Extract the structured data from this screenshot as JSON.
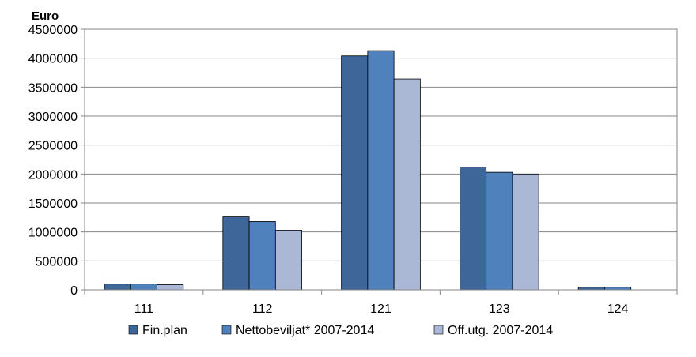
{
  "chart_data": {
    "type": "bar",
    "ylabel": "Euro",
    "categories": [
      "111",
      "112",
      "121",
      "123",
      "124"
    ],
    "series": [
      {
        "name": "Fin.plan",
        "color": "#3E6699",
        "values": [
          100000,
          1260000,
          4040000,
          2120000,
          45000
        ]
      },
      {
        "name": "Nettobeviljat* 2007-2014",
        "color": "#4F81BD",
        "values": [
          100000,
          1180000,
          4130000,
          2030000,
          45000
        ]
      },
      {
        "name": "Off.utg. 2007-2014",
        "color": "#AAB8D6",
        "values": [
          90000,
          1030000,
          3640000,
          2000000,
          0
        ]
      }
    ],
    "ylim": [
      0,
      4500000
    ],
    "yticks": [
      "0",
      "500000",
      "1000000",
      "1500000",
      "2000000",
      "2500000",
      "3000000",
      "3500000",
      "4000000",
      "4500000"
    ],
    "grid": true,
    "legend": "bottom"
  }
}
